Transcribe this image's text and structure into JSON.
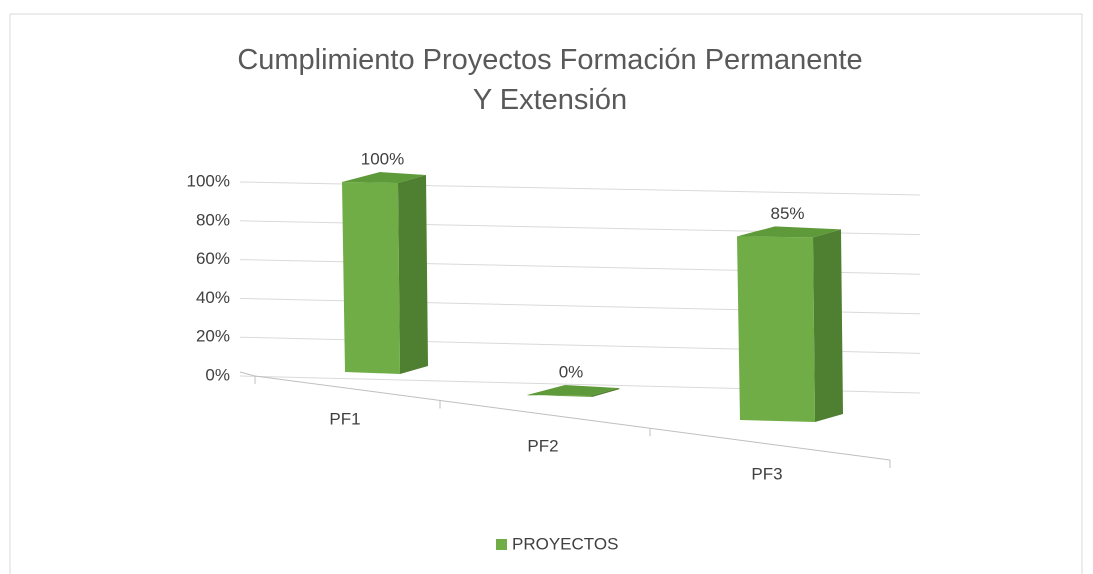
{
  "chart_data": {
    "type": "bar3d",
    "title": "Cumplimiento Proyectos Formación Permanente Y Extensión",
    "categories": [
      "PF1",
      "PF2",
      "PF3"
    ],
    "series": [
      {
        "name": "PROYECTOS",
        "color": "#70ad47",
        "values": [
          100,
          0,
          85
        ],
        "value_labels": [
          "100%",
          "0%",
          "85%"
        ]
      }
    ],
    "ylim": [
      0,
      100
    ],
    "yticks": [
      {
        "value": 0,
        "label": "0%"
      },
      {
        "value": 20,
        "label": "20%"
      },
      {
        "value": 40,
        "label": "40%"
      },
      {
        "value": 60,
        "label": "60%"
      },
      {
        "value": 80,
        "label": "80%"
      },
      {
        "value": 100,
        "label": "100%"
      }
    ],
    "grid": true,
    "legend": "bottom"
  }
}
